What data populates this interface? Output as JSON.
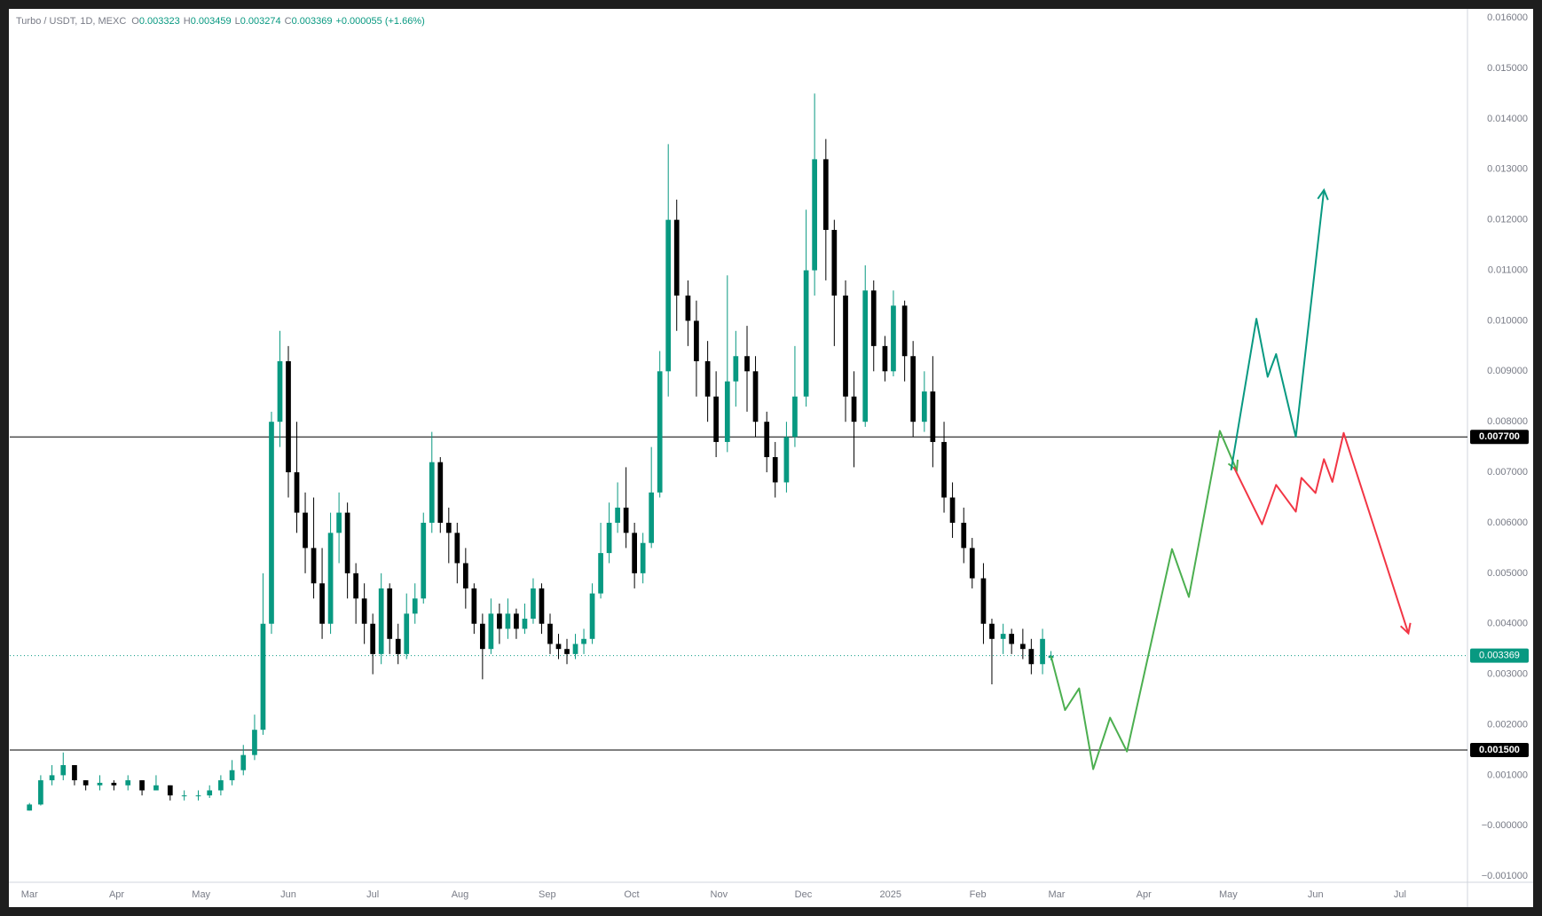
{
  "chart_data": {
    "type": "candlestick",
    "header": {
      "symbol": "Turbo / USDT, 1D, MEXC",
      "ohlc": [
        {
          "label": "O",
          "value": "0.003323"
        },
        {
          "label": "H",
          "value": "0.003459"
        },
        {
          "label": "L",
          "value": "0.003274"
        },
        {
          "label": "C",
          "value": "0.003369"
        }
      ],
      "change": "+0.000055 (+1.66%)"
    },
    "up_color": "#089981",
    "down_color": "#000000",
    "x": [
      0,
      4,
      8,
      12,
      16,
      20,
      25,
      30,
      35,
      40,
      45,
      50,
      55,
      60,
      64,
      68,
      72,
      76,
      80,
      83,
      86,
      89,
      92,
      95,
      98,
      101,
      104,
      107,
      110,
      113,
      116,
      119,
      122,
      125,
      128,
      131,
      134,
      137,
      140,
      143,
      146,
      149,
      152,
      155,
      158,
      161,
      164,
      167,
      170,
      173,
      176,
      179,
      182,
      185,
      188,
      191,
      194,
      197,
      200,
      203,
      206,
      209,
      212,
      215,
      218,
      221,
      224,
      227,
      230,
      234,
      237,
      241,
      244,
      248,
      251,
      255,
      258,
      262,
      265,
      269,
      272,
      276,
      279,
      283,
      286,
      290,
      293,
      297,
      300,
      304,
      307,
      311,
      314,
      318,
      321,
      325,
      328,
      332,
      335,
      339,
      342,
      346,
      349,
      353,
      356,
      360,
      363
    ],
    "open": [
      0.0003,
      0.00042,
      0.0009,
      0.001,
      0.0012,
      0.0009,
      0.0008,
      0.00085,
      0.0008,
      0.0009,
      0.0007,
      0.0008,
      0.0006,
      0.0006,
      0.0006,
      0.0007,
      0.0009,
      0.0011,
      0.0014,
      0.0019,
      0.004,
      0.008,
      0.0092,
      0.007,
      0.0062,
      0.0055,
      0.0048,
      0.004,
      0.0058,
      0.0062,
      0.005,
      0.0045,
      0.004,
      0.0034,
      0.0047,
      0.0037,
      0.0034,
      0.0042,
      0.0045,
      0.006,
      0.0072,
      0.006,
      0.0058,
      0.0052,
      0.0047,
      0.004,
      0.0035,
      0.0042,
      0.0039,
      0.0042,
      0.0039,
      0.0041,
      0.0047,
      0.004,
      0.0036,
      0.0035,
      0.0034,
      0.0036,
      0.0037,
      0.0046,
      0.0054,
      0.006,
      0.0063,
      0.0058,
      0.005,
      0.0056,
      0.0066,
      0.009,
      0.012,
      0.0105,
      0.01,
      0.0092,
      0.0085,
      0.0076,
      0.0088,
      0.0093,
      0.009,
      0.008,
      0.0073,
      0.0068,
      0.0077,
      0.0085,
      0.011,
      0.0132,
      0.0118,
      0.0105,
      0.0085,
      0.008,
      0.0106,
      0.0095,
      0.009,
      0.0103,
      0.0093,
      0.008,
      0.0086,
      0.0076,
      0.0065,
      0.006,
      0.0055,
      0.0049,
      0.004,
      0.0037,
      0.0038,
      0.0036,
      0.0035,
      0.0032,
      0.003323
    ],
    "high": [
      0.00045,
      0.001,
      0.0012,
      0.00145,
      0.0012,
      0.0009,
      0.001,
      0.0009,
      0.001,
      0.0009,
      0.001,
      0.0008,
      0.0007,
      0.0007,
      0.0008,
      0.001,
      0.0013,
      0.0016,
      0.0022,
      0.005,
      0.0082,
      0.0098,
      0.0095,
      0.008,
      0.0066,
      0.0065,
      0.0055,
      0.0062,
      0.0066,
      0.0064,
      0.0052,
      0.0048,
      0.0042,
      0.005,
      0.0048,
      0.004,
      0.0046,
      0.0048,
      0.0062,
      0.0078,
      0.0073,
      0.0063,
      0.006,
      0.0055,
      0.0048,
      0.0042,
      0.0045,
      0.0044,
      0.0045,
      0.0043,
      0.0044,
      0.0049,
      0.0048,
      0.0042,
      0.0038,
      0.0037,
      0.0038,
      0.0039,
      0.0048,
      0.006,
      0.0064,
      0.0068,
      0.0071,
      0.006,
      0.0058,
      0.0075,
      0.0094,
      0.0135,
      0.0124,
      0.0108,
      0.0104,
      0.0096,
      0.009,
      0.0109,
      0.0098,
      0.0099,
      0.0093,
      0.0082,
      0.0076,
      0.008,
      0.0095,
      0.0122,
      0.0145,
      0.0136,
      0.012,
      0.0108,
      0.009,
      0.0111,
      0.0108,
      0.0097,
      0.0106,
      0.0104,
      0.0096,
      0.009,
      0.0093,
      0.008,
      0.0068,
      0.0063,
      0.0057,
      0.0052,
      0.0041,
      0.004,
      0.0039,
      0.0039,
      0.0037,
      0.0039,
      0.003459
    ],
    "low": [
      0.0003,
      0.0004,
      0.0008,
      0.0009,
      0.0008,
      0.0007,
      0.0007,
      0.0007,
      0.0007,
      0.0006,
      0.0007,
      0.0005,
      0.0005,
      0.0005,
      0.00055,
      0.0006,
      0.0008,
      0.001,
      0.0013,
      0.0018,
      0.0038,
      0.0075,
      0.0065,
      0.0058,
      0.005,
      0.0045,
      0.0037,
      0.0038,
      0.0052,
      0.0045,
      0.004,
      0.0036,
      0.003,
      0.0032,
      0.0034,
      0.0032,
      0.0033,
      0.004,
      0.0044,
      0.0058,
      0.0058,
      0.0052,
      0.0048,
      0.0043,
      0.0038,
      0.0029,
      0.0034,
      0.0036,
      0.0037,
      0.0037,
      0.0038,
      0.004,
      0.0038,
      0.0034,
      0.0033,
      0.0032,
      0.0033,
      0.0034,
      0.0036,
      0.0045,
      0.0052,
      0.0058,
      0.0055,
      0.0047,
      0.0048,
      0.0055,
      0.0065,
      0.0085,
      0.0098,
      0.0095,
      0.0085,
      0.008,
      0.0073,
      0.0074,
      0.0083,
      0.0082,
      0.0077,
      0.007,
      0.0065,
      0.0066,
      0.0075,
      0.0083,
      0.0105,
      0.0108,
      0.0095,
      0.008,
      0.0071,
      0.0079,
      0.009,
      0.0088,
      0.0089,
      0.0088,
      0.0077,
      0.0078,
      0.0071,
      0.0062,
      0.0057,
      0.0052,
      0.0047,
      0.0036,
      0.0028,
      0.0034,
      0.0034,
      0.0033,
      0.003,
      0.003,
      0.003274
    ],
    "close": [
      0.00042,
      0.0009,
      0.001,
      0.0012,
      0.0009,
      0.0008,
      0.00085,
      0.0008,
      0.0009,
      0.0007,
      0.0008,
      0.0006,
      0.0006,
      0.0006,
      0.0007,
      0.0009,
      0.0011,
      0.0014,
      0.0019,
      0.004,
      0.008,
      0.0092,
      0.007,
      0.0062,
      0.0055,
      0.0048,
      0.004,
      0.0058,
      0.0062,
      0.005,
      0.0045,
      0.004,
      0.0034,
      0.0047,
      0.0037,
      0.0034,
      0.0042,
      0.0045,
      0.006,
      0.0072,
      0.006,
      0.0058,
      0.0052,
      0.0047,
      0.004,
      0.0035,
      0.0042,
      0.0039,
      0.0042,
      0.0039,
      0.0041,
      0.0047,
      0.004,
      0.0036,
      0.0035,
      0.0034,
      0.0036,
      0.0037,
      0.0046,
      0.0054,
      0.006,
      0.0063,
      0.0058,
      0.005,
      0.0056,
      0.0066,
      0.009,
      0.012,
      0.0105,
      0.01,
      0.0092,
      0.0085,
      0.0076,
      0.0088,
      0.0093,
      0.009,
      0.008,
      0.0073,
      0.0068,
      0.0077,
      0.0085,
      0.011,
      0.0132,
      0.0118,
      0.0105,
      0.0085,
      0.008,
      0.0106,
      0.0095,
      0.009,
      0.0103,
      0.0093,
      0.008,
      0.0086,
      0.0076,
      0.0065,
      0.006,
      0.0055,
      0.0049,
      0.004,
      0.0037,
      0.0038,
      0.0036,
      0.0035,
      0.0032,
      0.0037,
      0.003369
    ],
    "xlim": [
      -7,
      511
    ],
    "xticks": [
      {
        "value": 0,
        "label": "Mar"
      },
      {
        "value": 31,
        "label": "Apr"
      },
      {
        "value": 61,
        "label": "May"
      },
      {
        "value": 92,
        "label": "Jun"
      },
      {
        "value": 122,
        "label": "Jul"
      },
      {
        "value": 153,
        "label": "Aug"
      },
      {
        "value": 184,
        "label": "Sep"
      },
      {
        "value": 214,
        "label": "Oct"
      },
      {
        "value": 245,
        "label": "Nov"
      },
      {
        "value": 275,
        "label": "Dec"
      },
      {
        "value": 306,
        "label": "2025"
      },
      {
        "value": 337,
        "label": "Feb"
      },
      {
        "value": 365,
        "label": "Mar"
      },
      {
        "value": 396,
        "label": "Apr"
      },
      {
        "value": 426,
        "label": "May"
      },
      {
        "value": 457,
        "label": "Jun"
      },
      {
        "value": 487,
        "label": "Jul"
      }
    ],
    "ylim": [
      -0.00112,
      0.01616
    ],
    "yticks": [
      {
        "value": -0.001,
        "label": "−0.001000"
      },
      {
        "value": 0,
        "label": "−0.000000"
      },
      {
        "value": 0.001,
        "label": "0.001000"
      },
      {
        "value": 0.002,
        "label": "0.002000"
      },
      {
        "value": 0.003,
        "label": "0.003000"
      },
      {
        "value": 0.004,
        "label": "0.004000"
      },
      {
        "value": 0.005,
        "label": "0.005000"
      },
      {
        "value": 0.006,
        "label": "0.006000"
      },
      {
        "value": 0.007,
        "label": "0.007000"
      },
      {
        "value": 0.008,
        "label": "0.008000"
      },
      {
        "value": 0.009,
        "label": "0.009000"
      },
      {
        "value": 0.01,
        "label": "0.010000"
      },
      {
        "value": 0.011,
        "label": "0.011000"
      },
      {
        "value": 0.012,
        "label": "0.012000"
      },
      {
        "value": 0.013,
        "label": "0.013000"
      },
      {
        "value": 0.014,
        "label": "0.014000"
      },
      {
        "value": 0.015,
        "label": "0.015000"
      },
      {
        "value": 0.016,
        "label": "0.016000"
      }
    ],
    "grid": false,
    "levels": [
      {
        "value": 0.0077,
        "label": "0.007700"
      },
      {
        "value": 0.0015,
        "label": "0.001500"
      }
    ],
    "last_price": {
      "value": 0.003369,
      "label": "0.003369"
    },
    "drawings": [
      {
        "color": "#4caf50",
        "x": [
          363,
          368,
          373,
          378,
          384,
          390,
          406,
          412,
          423,
          429
        ],
        "y": [
          0.00336,
          0.00229,
          0.00272,
          0.00112,
          0.00214,
          0.00147,
          0.00548,
          0.00453,
          0.00782,
          0.00704
        ]
      },
      {
        "color": "#089981",
        "x": [
          427,
          436,
          440,
          443,
          450,
          460
        ],
        "y": [
          0.00704,
          0.01004,
          0.00889,
          0.00934,
          0.0077,
          0.01259
        ]
      },
      {
        "color": "#f23645",
        "x": [
          428,
          438,
          443,
          450,
          452,
          457,
          460,
          463,
          467,
          490
        ],
        "y": [
          0.0071,
          0.00597,
          0.00675,
          0.00622,
          0.00689,
          0.00659,
          0.00726,
          0.00681,
          0.00778,
          0.00381
        ]
      }
    ]
  }
}
